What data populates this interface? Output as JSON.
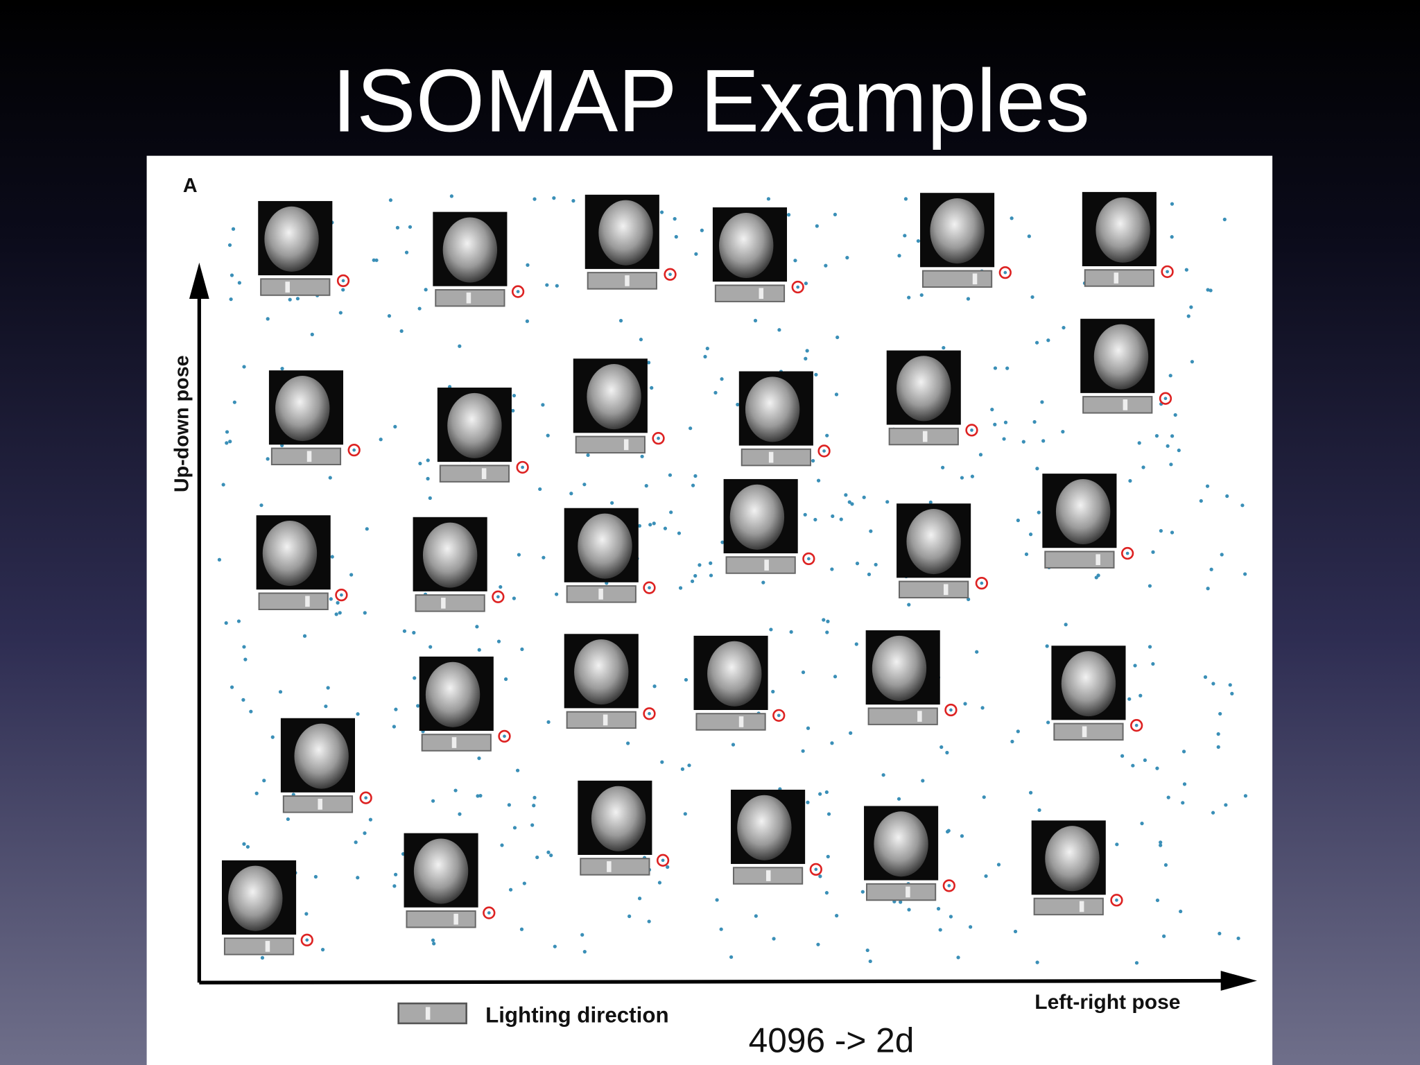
{
  "title": "ISOMAP Examples",
  "figure": {
    "panel_label": "A",
    "y_axis_label": "Up-down pose",
    "x_axis_label": "Left-right pose",
    "legend_label": "Lighting direction"
  },
  "caption": "4096 -> 2d"
}
